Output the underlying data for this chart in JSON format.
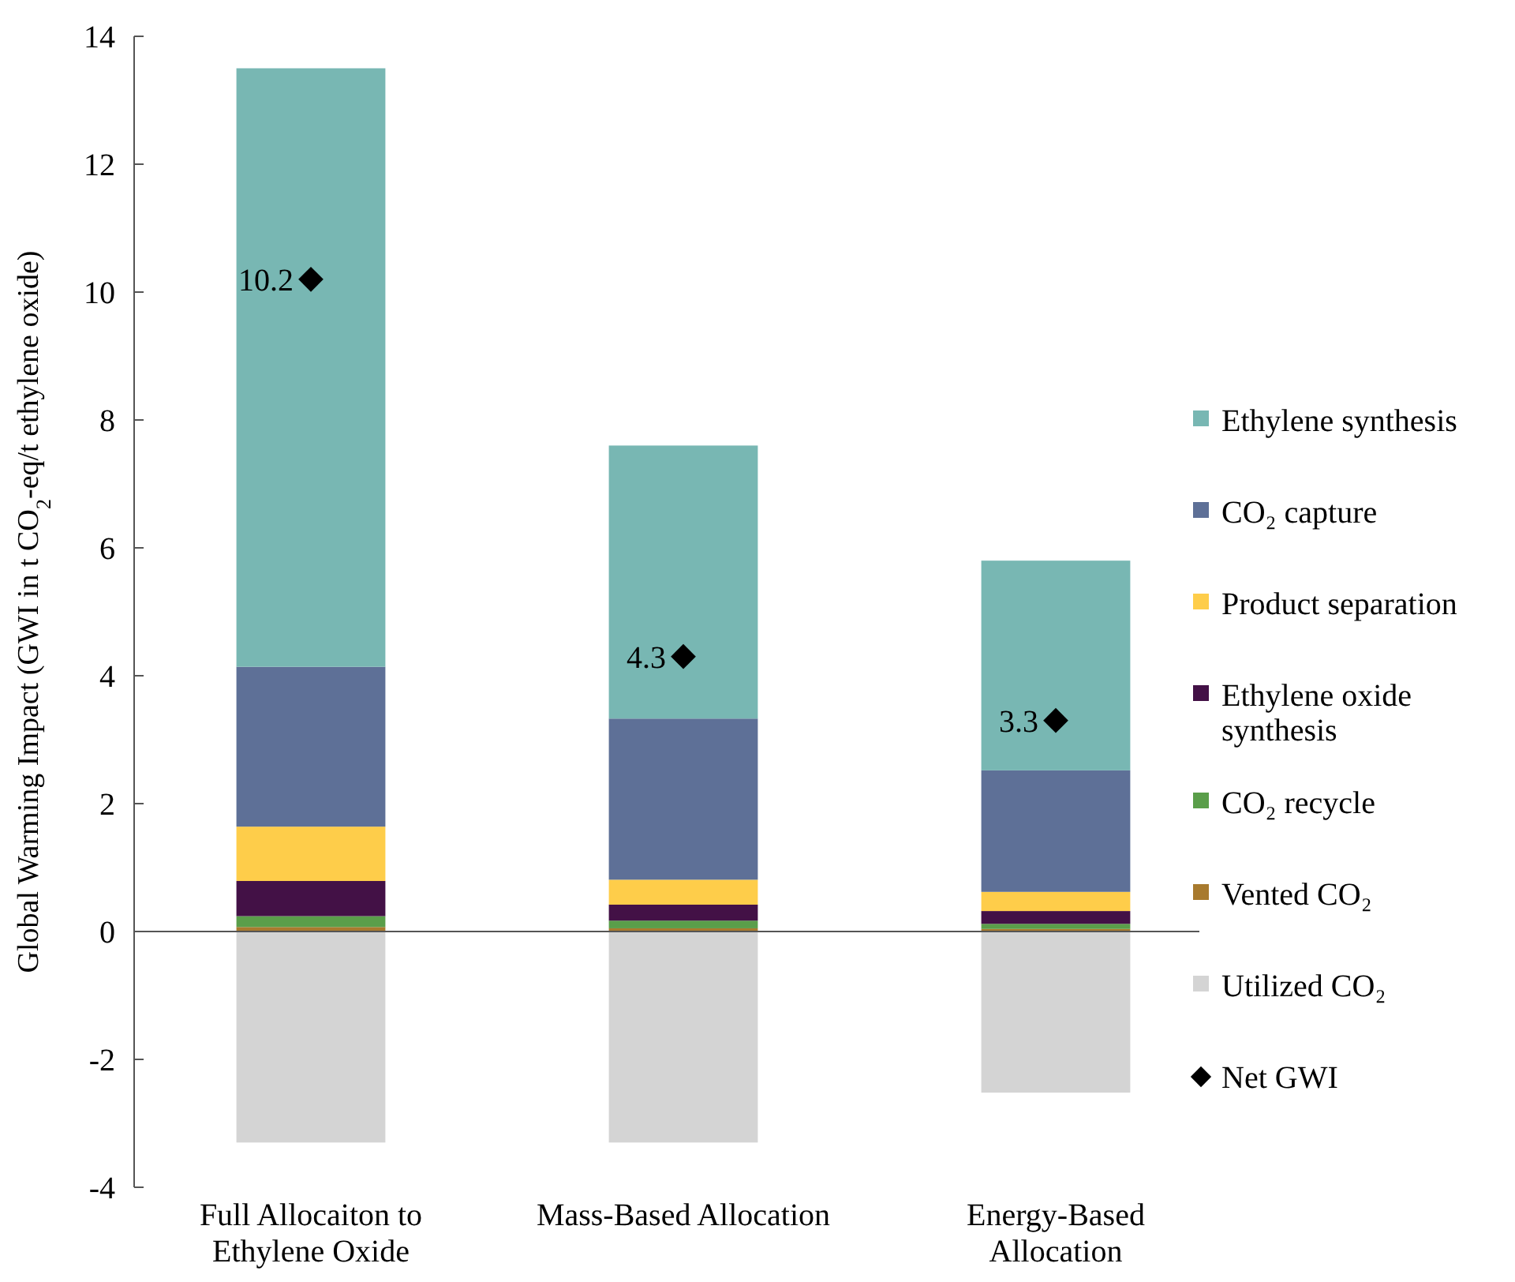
{
  "chart_data": {
    "type": "bar",
    "stacked": true,
    "ylabel": "Global Warming Impact (GWI in t CO$_{2}$-eq/t ethylene oxide)",
    "categories": [
      "Full Allocaiton to Ethylene Oxide",
      "Mass-Based Allocation",
      "Energy-Based Allocation"
    ],
    "ylim": [
      -4,
      14
    ],
    "yticks": [
      -4,
      -2,
      0,
      2,
      4,
      6,
      8,
      10,
      12,
      14
    ],
    "legend": "right",
    "series": [
      {
        "name": "Utilized CO₂",
        "color": "#d4d4d4",
        "values": [
          -3.3,
          -3.3,
          -2.52
        ]
      },
      {
        "name": "Vented CO₂",
        "color": "#a87a2e",
        "values": [
          0.07,
          0.05,
          0.04
        ]
      },
      {
        "name": "CO₂ recycle",
        "color": "#5a9e4a",
        "values": [
          0.17,
          0.12,
          0.08
        ]
      },
      {
        "name": "Ethylene oxide synthesis",
        "color": "#431146",
        "values": [
          0.55,
          0.25,
          0.2
        ]
      },
      {
        "name": "Product separation",
        "color": "#fecd4a",
        "values": [
          0.85,
          0.39,
          0.3
        ]
      },
      {
        "name": "CO₂ capture",
        "color": "#5e7097",
        "values": [
          2.5,
          2.52,
          1.9
        ]
      },
      {
        "name": "Ethylene synthesis",
        "color": "#78b7b3",
        "values": [
          9.36,
          4.27,
          3.28
        ]
      },
      {
        "name": "Net GWI",
        "type": "scatter",
        "marker": "diamond",
        "color": "#000000",
        "x": [
          "Full Allocaiton to Ethylene Oxide",
          "Mass-Based Allocation",
          "Energy-Based Allocation"
        ],
        "values": [
          10.2,
          4.3,
          3.3
        ],
        "value_labels": [
          "10.2",
          "4.3",
          "3.3"
        ]
      }
    ]
  }
}
